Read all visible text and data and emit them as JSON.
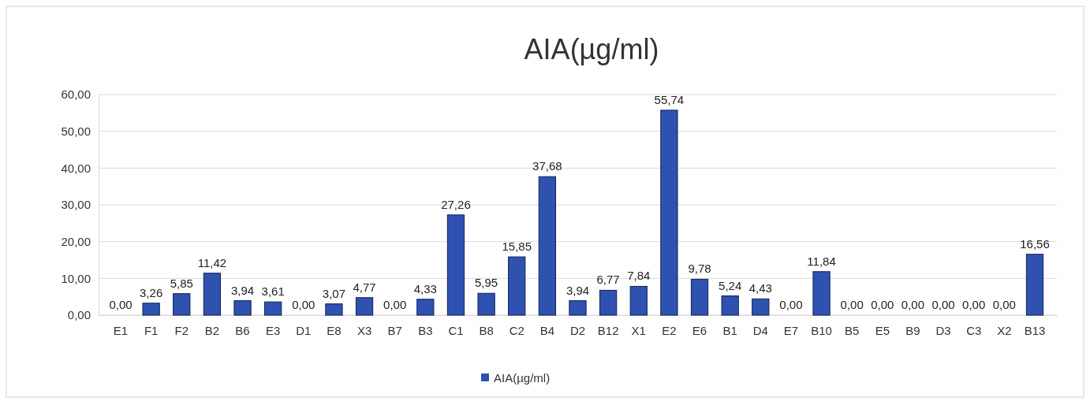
{
  "chart_data": {
    "type": "bar",
    "title": "AIA(µg/ml)",
    "categories": [
      "E1",
      "F1",
      "F2",
      "B2",
      "B6",
      "E3",
      "D1",
      "E8",
      "X3",
      "B7",
      "B3",
      "C1",
      "B8",
      "C2",
      "B4",
      "D2",
      "B12",
      "X1",
      "E2",
      "E6",
      "B1",
      "D4",
      "E7",
      "B10",
      "B5",
      "E5",
      "B9",
      "D3",
      "C3",
      "X2",
      "B13"
    ],
    "series": [
      {
        "name": "AIA(µg/ml)",
        "color": "#2f52b0",
        "values": [
          0,
          3.26,
          5.85,
          11.42,
          3.94,
          3.61,
          0,
          3.07,
          4.77,
          0,
          4.33,
          27.26,
          5.95,
          15.85,
          37.68,
          3.94,
          6.77,
          7.84,
          55.74,
          9.78,
          5.24,
          4.43,
          0,
          11.84,
          0,
          0,
          0,
          0,
          0,
          0,
          16.56
        ],
        "value_labels": [
          "0,00",
          "3,26",
          "5,85",
          "11,42",
          "3,94",
          "3,61",
          "0,00",
          "3,07",
          "4,77",
          "0,00",
          "4,33",
          "27,26",
          "5,95",
          "15,85",
          "37,68",
          "3,94",
          "6,77",
          "7,84",
          "55,74",
          "9,78",
          "5,24",
          "4,43",
          "0,00",
          "11,84",
          "0,00",
          "0,00",
          "0,00",
          "0,00",
          "0,00",
          "0,00",
          "16,56"
        ]
      }
    ],
    "ylim": [
      0,
      60
    ],
    "yticks": [
      {
        "value": 0,
        "label": "0,00"
      },
      {
        "value": 10,
        "label": "10,00"
      },
      {
        "value": 20,
        "label": "20,00"
      },
      {
        "value": 30,
        "label": "30,00"
      },
      {
        "value": 40,
        "label": "40,00"
      },
      {
        "value": 50,
        "label": "50,00"
      },
      {
        "value": 60,
        "label": "60,00"
      }
    ],
    "grid": "y",
    "legend": "bottom"
  }
}
